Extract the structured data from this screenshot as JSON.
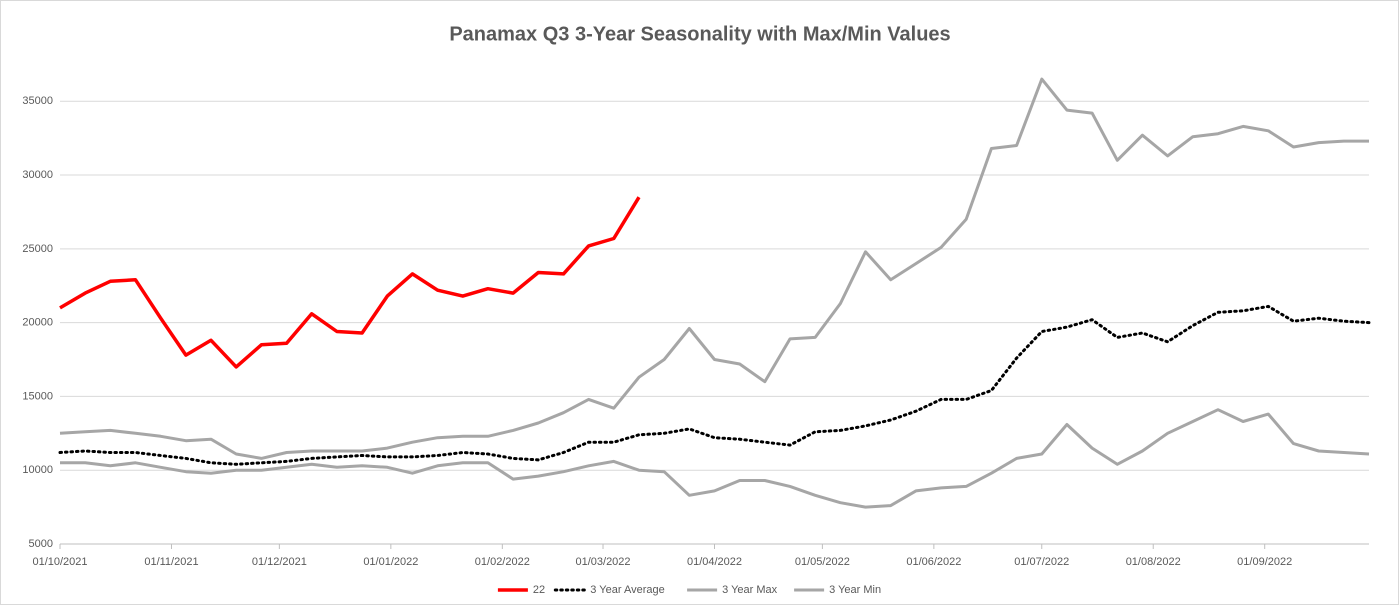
{
  "chart_data": {
    "type": "line",
    "title": "Panamax Q3 3-Year Seasonality with Max/Min Values",
    "x": [
      "01/10/2021",
      "08/10/2021",
      "15/10/2021",
      "22/10/2021",
      "29/10/2021",
      "05/11/2021",
      "12/11/2021",
      "19/11/2021",
      "26/11/2021",
      "03/12/2021",
      "10/12/2021",
      "17/12/2021",
      "24/12/2021",
      "31/12/2021",
      "07/01/2022",
      "14/01/2022",
      "21/01/2022",
      "28/01/2022",
      "04/02/2022",
      "11/02/2022",
      "18/02/2022",
      "25/02/2022",
      "04/03/2022",
      "11/03/2022",
      "18/03/2022",
      "25/03/2022",
      "01/04/2022",
      "08/04/2022",
      "15/04/2022",
      "22/04/2022",
      "29/04/2022",
      "06/05/2022",
      "13/05/2022",
      "20/05/2022",
      "27/05/2022",
      "03/06/2022",
      "10/06/2022",
      "17/06/2022",
      "24/06/2022",
      "01/07/2022",
      "08/07/2022",
      "15/07/2022",
      "22/07/2022",
      "29/07/2022",
      "05/08/2022",
      "12/08/2022",
      "19/08/2022",
      "26/08/2022",
      "02/09/2022",
      "09/09/2022",
      "16/09/2022",
      "23/09/2022",
      "30/09/2022"
    ],
    "series": [
      {
        "name": "22",
        "color": "#ff0000",
        "style": "solid",
        "width": 3.5,
        "values": [
          21000,
          22000,
          22800,
          22900,
          20300,
          17800,
          18800,
          17000,
          18500,
          18600,
          20600,
          19400,
          19300,
          21800,
          23300,
          22200,
          21800,
          22300,
          22000,
          23400,
          23300,
          25200,
          25700,
          28500,
          null,
          null,
          null,
          null,
          null,
          null,
          null,
          null,
          null,
          null,
          null,
          null,
          null,
          null,
          null,
          null,
          null,
          null,
          null,
          null,
          null,
          null,
          null,
          null,
          null,
          null,
          null,
          null,
          null
        ]
      },
      {
        "name": "3 Year Average",
        "color": "#000000",
        "style": "dotted",
        "width": 3,
        "values": [
          11200,
          11300,
          11200,
          11200,
          11000,
          10800,
          10500,
          10400,
          10500,
          10600,
          10800,
          10900,
          11000,
          10900,
          10900,
          11000,
          11200,
          11100,
          10800,
          10700,
          11200,
          11900,
          11900,
          12400,
          12500,
          12800,
          12200,
          12100,
          11900,
          11700,
          12600,
          12700,
          13000,
          13400,
          14000,
          14800,
          14800,
          15400,
          17600,
          19400,
          19700,
          20200,
          19000,
          19300,
          18700,
          19800,
          20700,
          20800,
          21100,
          20100,
          20300,
          20100,
          20000
        ]
      },
      {
        "name": "3 Year Max",
        "color": "#a6a6a6",
        "style": "solid",
        "width": 3,
        "values": [
          12500,
          12600,
          12700,
          12500,
          12300,
          12000,
          12100,
          11100,
          10800,
          11200,
          11300,
          11300,
          11300,
          11500,
          11900,
          12200,
          12300,
          12300,
          12700,
          13200,
          13900,
          14800,
          14200,
          16300,
          17500,
          19600,
          17500,
          17200,
          16000,
          18900,
          19000,
          21300,
          24800,
          22900,
          24000,
          25100,
          27000,
          31800,
          32000,
          36500,
          34400,
          34200,
          31000,
          32700,
          31300,
          32600,
          32800,
          33300,
          33000,
          31900,
          32200,
          32300,
          32300
        ]
      },
      {
        "name": "3 Year Min",
        "color": "#a6a6a6",
        "style": "solid",
        "width": 3,
        "values": [
          10500,
          10500,
          10300,
          10500,
          10200,
          9900,
          9800,
          10000,
          10000,
          10200,
          10400,
          10200,
          10300,
          10200,
          9800,
          10300,
          10500,
          10500,
          9400,
          9600,
          9900,
          10300,
          10600,
          10000,
          9900,
          8300,
          8600,
          9300,
          9300,
          8900,
          8300,
          7800,
          7500,
          7600,
          8600,
          8800,
          8900,
          9800,
          10800,
          11100,
          13100,
          11500,
          10400,
          11300,
          12500,
          13300,
          14100,
          13300,
          13800,
          11800,
          11300,
          11200,
          11100
        ]
      }
    ],
    "xlim": [
      "01/10/2021",
      "30/09/2022"
    ],
    "xticks": [
      "01/10/2021",
      "01/11/2021",
      "01/12/2021",
      "01/01/2022",
      "01/02/2022",
      "01/03/2022",
      "01/04/2022",
      "01/05/2022",
      "01/06/2022",
      "01/07/2022",
      "01/08/2022",
      "01/09/2022"
    ],
    "ylim": [
      5000,
      38000
    ],
    "yticks": [
      5000,
      10000,
      15000,
      20000,
      25000,
      30000,
      35000
    ],
    "grid": true,
    "legend": "bottom"
  }
}
